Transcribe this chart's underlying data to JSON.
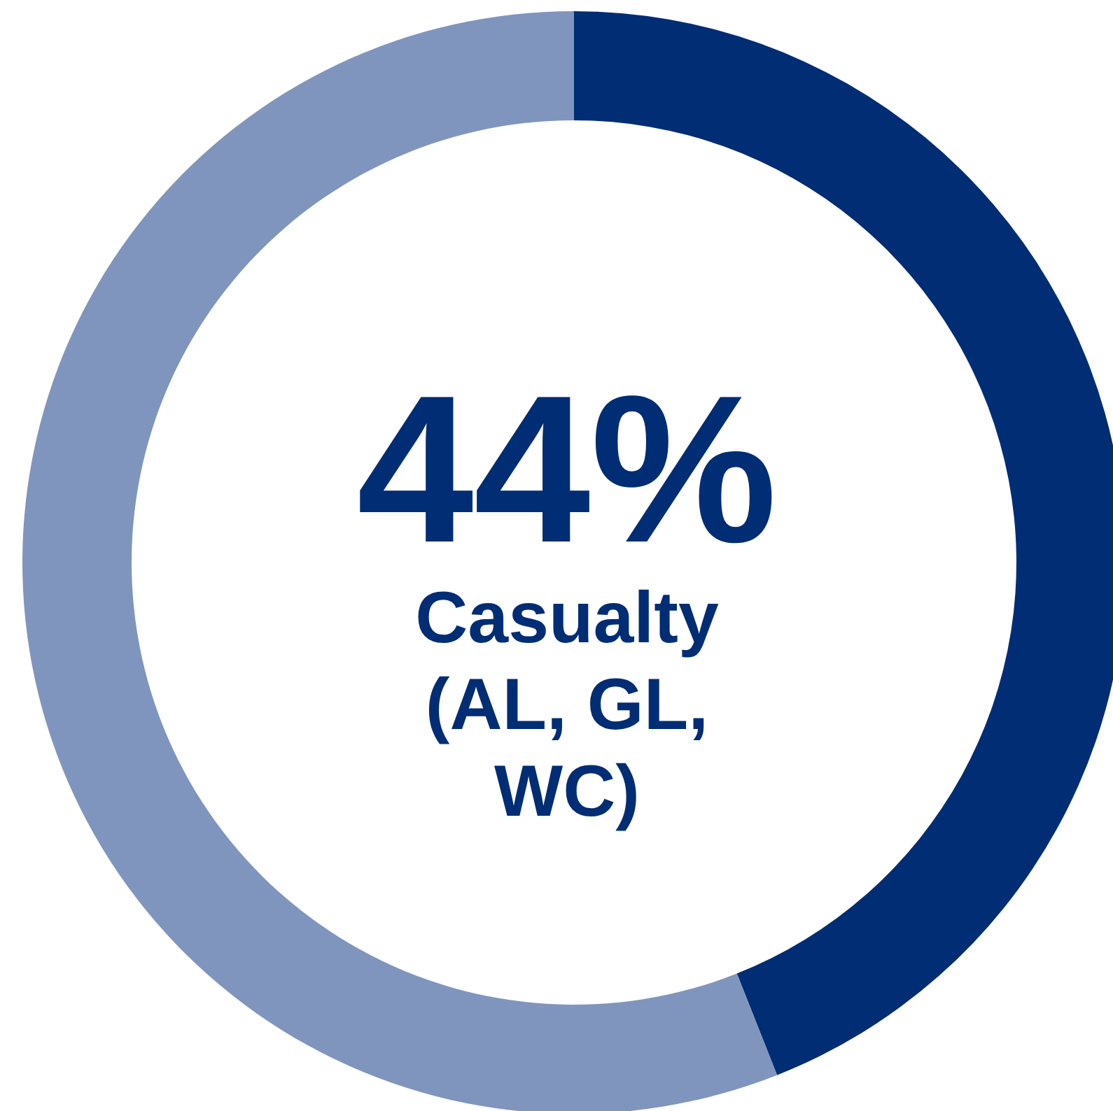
{
  "chart_data": {
    "type": "donut",
    "categories": [
      "Casualty (AL, GL, WC)",
      null
    ],
    "values": [
      44,
      56
    ],
    "colors": [
      "#002d74",
      "#8095bd"
    ],
    "value_labels": [
      "44%",
      null
    ]
  }
}
